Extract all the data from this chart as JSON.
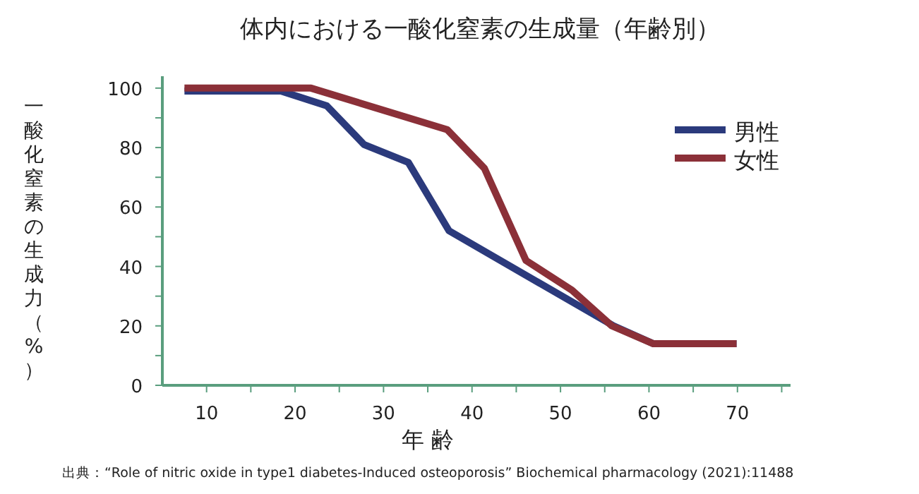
{
  "chart_data": {
    "type": "line",
    "title": "体内における一酸化窒素の生成量（年齢別）",
    "xlabel": "年 齢",
    "ylabel": "一酸化窒素の生成力（%）",
    "annotations": [
      "出典：“Role of nitric oxide in type1 diabetes-Induced osteoporosis” Biochemical pharmacology (2021):11488"
    ],
    "xlim": [
      5,
      76
    ],
    "ylim": [
      0,
      104
    ],
    "xticks": [
      10,
      {
        "value": 15,
        "label": null
      },
      20,
      {
        "value": 25,
        "label": null
      },
      30,
      {
        "value": 35,
        "label": null
      },
      40,
      {
        "value": 45,
        "label": null
      },
      50,
      {
        "value": 55,
        "label": null
      },
      60,
      {
        "value": 65,
        "label": null
      },
      70,
      {
        "value": 75,
        "label": null
      }
    ],
    "yticks": [
      0,
      {
        "value": 10,
        "label": null
      },
      20,
      {
        "value": 30,
        "label": null
      },
      40,
      {
        "value": 50,
        "label": null
      },
      60,
      {
        "value": 70,
        "label": null
      },
      80,
      {
        "value": 90,
        "label": null
      },
      100
    ],
    "grid": false,
    "legend": "top right",
    "marker": "none",
    "line_style": "solid",
    "series": [
      {
        "name": "男性",
        "color": "#2b3a7c",
        "x": [
          7.5,
          18.4,
          23.6,
          27.8,
          32.8,
          37.4,
          56.0,
          60.5,
          69.9
        ],
        "values": [
          99,
          99,
          94,
          81,
          75,
          52,
          20,
          14,
          14
        ]
      },
      {
        "name": "女性",
        "color": "#8b3038",
        "x": [
          7.5,
          21.8,
          37.2,
          41.4,
          46.1,
          51.3,
          55.8,
          60.5,
          69.9
        ],
        "values": [
          100,
          100,
          86,
          73,
          42,
          32,
          20,
          14,
          14
        ]
      }
    ]
  }
}
